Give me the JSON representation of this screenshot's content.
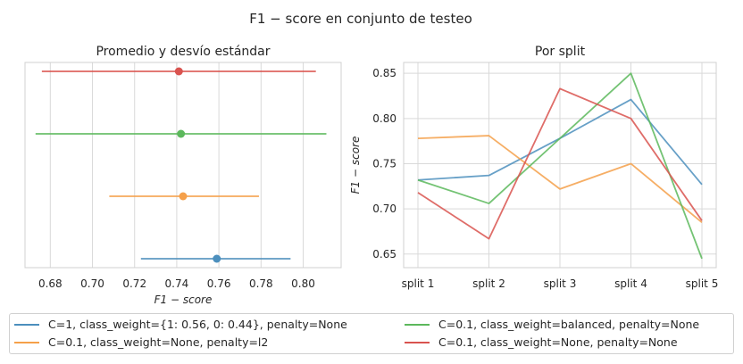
{
  "suptitle": "F1 − score en conjunto de testeo",
  "colors": [
    "#4c8fbd",
    "#f5a04a",
    "#5cb85c",
    "#d9534f"
  ],
  "legend": [
    "C=1, class_weight={1: 0.56, 0: 0.44}, penalty=None",
    "C=0.1, class_weight=None, penalty=l2",
    "C=0.1, class_weight=balanced, penalty=None",
    "C=0.1, class_weight=None, penalty=None"
  ],
  "chart_data": [
    {
      "type": "errorbar",
      "title": "Promedio y desvío estándar",
      "xlabel": "F1 − score",
      "ylabel": "",
      "xlim": [
        0.668,
        0.818
      ],
      "xticks": [
        "0.68",
        "0.70",
        "0.72",
        "0.74",
        "0.76",
        "0.78",
        "0.80"
      ],
      "grid": true,
      "series": [
        {
          "name": "C=0.1, class_weight=None, penalty=None",
          "mean": 0.741,
          "low": 0.676,
          "high": 0.806
        },
        {
          "name": "C=0.1, class_weight=balanced, penalty=None",
          "mean": 0.742,
          "low": 0.673,
          "high": 0.811
        },
        {
          "name": "C=0.1, class_weight=None, penalty=l2",
          "mean": 0.743,
          "low": 0.708,
          "high": 0.779
        },
        {
          "name": "C=1, class_weight={1: 0.56, 0: 0.44}, penalty=None",
          "mean": 0.759,
          "low": 0.723,
          "high": 0.794
        }
      ]
    },
    {
      "type": "line",
      "title": "Por split",
      "xlabel": "",
      "ylabel": "F1 − score",
      "categories": [
        "split 1",
        "split 2",
        "split 3",
        "split 4",
        "split 5"
      ],
      "ylim": [
        0.635,
        0.862
      ],
      "yticks": [
        "0.65",
        "0.70",
        "0.75",
        "0.80",
        "0.85"
      ],
      "grid": true,
      "series": [
        {
          "name": "C=1, class_weight={1: 0.56, 0: 0.44}, penalty=None",
          "values": [
            0.732,
            0.737,
            0.778,
            0.821,
            0.727
          ]
        },
        {
          "name": "C=0.1, class_weight=None, penalty=l2",
          "values": [
            0.778,
            0.781,
            0.722,
            0.75,
            0.685
          ]
        },
        {
          "name": "C=0.1, class_weight=balanced, penalty=None",
          "values": [
            0.732,
            0.706,
            0.778,
            0.85,
            0.645
          ]
        },
        {
          "name": "C=0.1, class_weight=None, penalty=None",
          "values": [
            0.718,
            0.667,
            0.833,
            0.8,
            0.687
          ]
        }
      ]
    }
  ]
}
